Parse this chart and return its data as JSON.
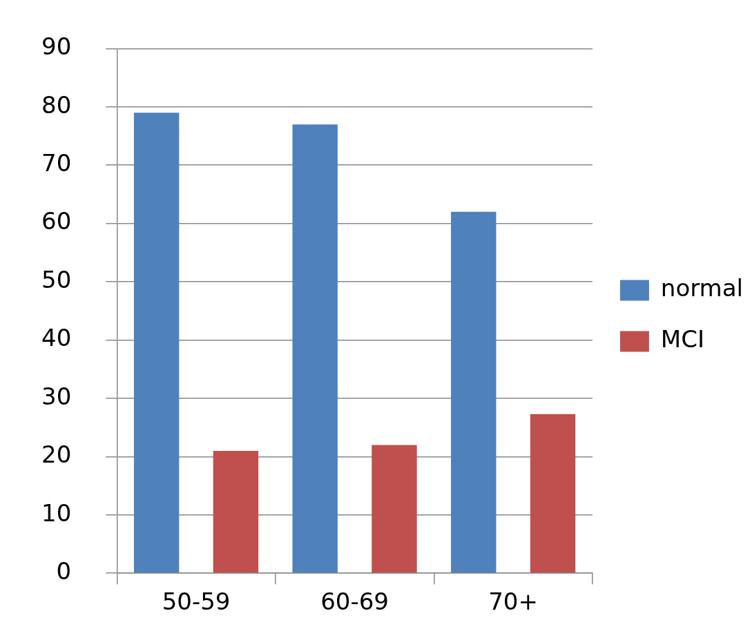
{
  "chart_data": {
    "type": "bar",
    "categories": [
      "50-59",
      "60-69",
      "70+"
    ],
    "series": [
      {
        "name": "normal",
        "color": "#4f81bd",
        "values": [
          79,
          77,
          62
        ]
      },
      {
        "name": "MCI",
        "color": "#c0504d",
        "values": [
          21,
          22,
          27.3
        ]
      }
    ],
    "ylim": [
      0,
      90
    ],
    "yticks": [
      0,
      10,
      20,
      30,
      40,
      50,
      60,
      70,
      80,
      90
    ],
    "grid": "y",
    "legend": "right"
  }
}
